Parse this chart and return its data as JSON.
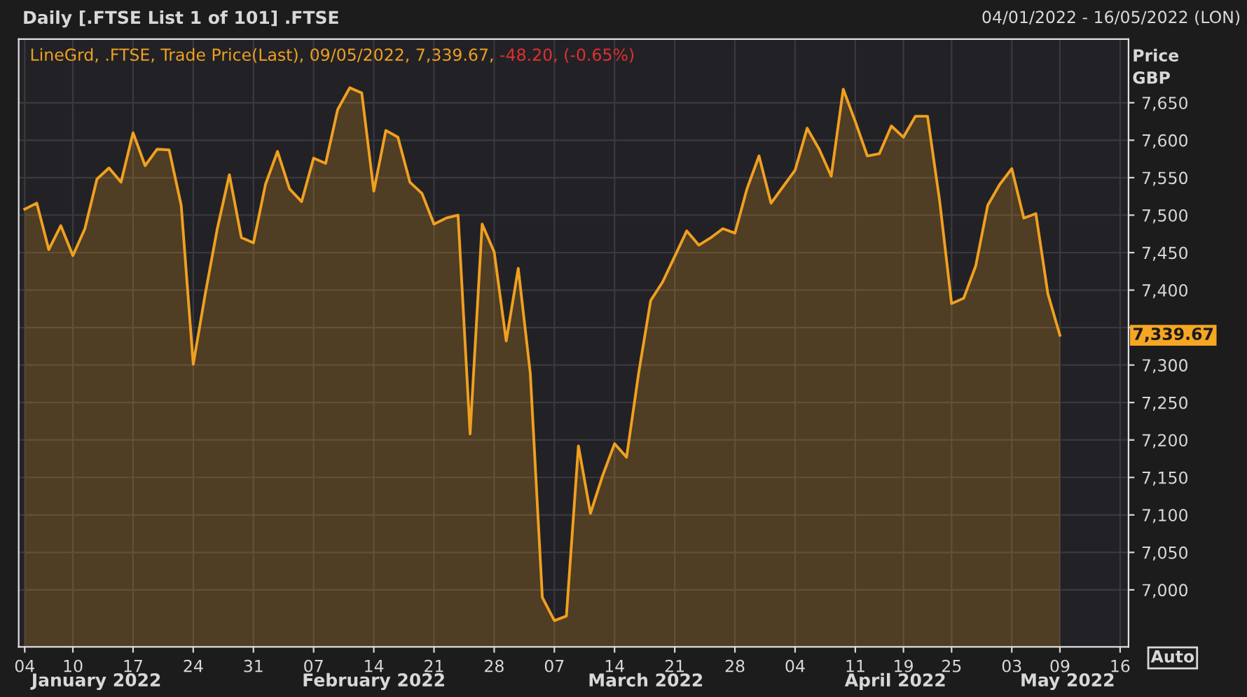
{
  "chart_data": {
    "type": "area",
    "title": "Daily [.FTSE List 1 of 101] .FTSE",
    "subtitle": "04/01/2022 - 16/05/2022 (LON)",
    "ylabel": "Price\nGBP",
    "categories": [
      "04",
      null,
      null,
      null,
      "10",
      null,
      null,
      null,
      null,
      "17",
      null,
      null,
      null,
      null,
      "24",
      null,
      null,
      null,
      null,
      "31",
      null,
      null,
      null,
      null,
      "07",
      null,
      null,
      null,
      null,
      "14",
      null,
      null,
      null,
      null,
      "21",
      null,
      null,
      null,
      null,
      "28",
      null,
      null,
      null,
      null,
      "07",
      null,
      null,
      null,
      null,
      "14",
      null,
      null,
      null,
      null,
      "21",
      null,
      null,
      null,
      null,
      "28",
      null,
      null,
      null,
      null,
      "04",
      null,
      null,
      null,
      null,
      "11",
      null,
      null,
      null,
      "19",
      null,
      null,
      null,
      "25",
      null,
      null,
      null,
      null,
      "03",
      null,
      null,
      null,
      "09",
      null,
      null,
      null,
      null,
      "16"
    ],
    "series": [
      {
        "color": "#f0a020",
        "values": [
          7508,
          7516,
          7454,
          7486,
          7446,
          7482,
          7548,
          7563,
          7544,
          7610,
          7566,
          7588,
          7587,
          7513,
          7301,
          7395,
          7482,
          7554,
          7470,
          7463,
          7541,
          7585,
          7535,
          7518,
          7576,
          7569,
          7641,
          7670,
          7663,
          7532,
          7613,
          7604,
          7544,
          7529,
          7488,
          7496,
          7500,
          7208,
          7488,
          7451,
          7332,
          7429,
          7289,
          6990,
          6959,
          6965,
          7192,
          7102,
          7152,
          7195,
          7177,
          7289,
          7386,
          7411,
          7445,
          7479,
          7460,
          7470,
          7482,
          7476,
          7535,
          7579,
          7516,
          7538,
          7560,
          7616,
          7588,
          7552,
          7668,
          7625,
          7579,
          7582,
          7619,
          7604,
          7632,
          7632,
          7520,
          7382,
          7389,
          7432,
          7513,
          7541,
          7562,
          7496,
          7502,
          7395,
          7339.67,
          null,
          null,
          null,
          null,
          null
        ]
      }
    ],
    "ylim": [
      6924,
      7735
    ],
    "yticks": [
      {
        "value": 7000,
        "label": "7,000"
      },
      {
        "value": 7050,
        "label": "7,050"
      },
      {
        "value": 7100,
        "label": "7,100"
      },
      {
        "value": 7150,
        "label": "7,150"
      },
      {
        "value": 7200,
        "label": "7,200"
      },
      {
        "value": 7250,
        "label": "7,250"
      },
      {
        "value": 7300,
        "label": "7,300"
      },
      {
        "value": 7350,
        "label": null
      },
      {
        "value": 7400,
        "label": "7,400"
      },
      {
        "value": 7450,
        "label": "7,450"
      },
      {
        "value": 7500,
        "label": "7,500"
      },
      {
        "value": 7550,
        "label": "7,550"
      },
      {
        "value": 7600,
        "label": "7,600"
      },
      {
        "value": 7650,
        "label": "7,650"
      }
    ],
    "grid": true,
    "legend": false,
    "annotations": [
      "LineGrd, .FTSE, Trade Price(Last), 09/05/2022, 7,339.67,",
      "-48.20, (-0.65%)",
      "7,339.67",
      "Auto",
      "January 2022",
      "February 2022",
      "March 2022",
      "April 2022",
      "May 2022"
    ]
  }
}
